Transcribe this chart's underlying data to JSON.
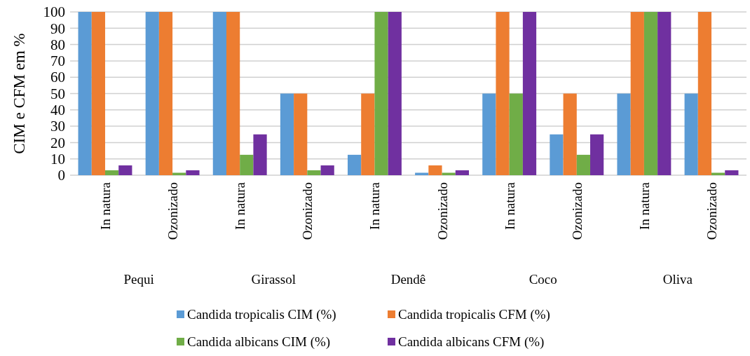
{
  "chart_data": {
    "type": "bar",
    "ylabel": "CIM e CFM em %",
    "categories": [
      "In natura",
      "Ozonizado",
      "In natura",
      "Ozonizado",
      "In natura",
      "Ozonizado",
      "In natura",
      "Ozonizado",
      "In natura",
      "Ozonizado"
    ],
    "annotations": [
      "Pequi",
      "Girassol",
      "Dendê",
      "Coco",
      "Oliva"
    ],
    "series": [
      {
        "name": "Candida tropicalis CIM (%)",
        "color": "#5b9bd5",
        "values": [
          100,
          100,
          100,
          50,
          12.5,
          1.5,
          50,
          25,
          50,
          50
        ]
      },
      {
        "name": "Candida tropicalis CFM (%)",
        "color": "#ed7d31",
        "values": [
          100,
          100,
          100,
          50,
          50,
          6,
          100,
          50,
          100,
          100
        ]
      },
      {
        "name": "Candida albicans CIM (%)",
        "color": "#70ad47",
        "values": [
          3,
          1.5,
          12.5,
          3,
          100,
          1.5,
          50,
          12.5,
          100,
          1.5
        ]
      },
      {
        "name": "Candida albicans CFM (%)",
        "color": "#7030a0",
        "values": [
          6,
          3,
          25,
          6,
          100,
          3,
          100,
          25,
          100,
          3
        ]
      }
    ],
    "ylim": [
      0,
      100
    ],
    "yticks": [
      0,
      10,
      20,
      30,
      40,
      50,
      60,
      70,
      80,
      90,
      100
    ],
    "grid": "y",
    "legend": "bottom"
  }
}
